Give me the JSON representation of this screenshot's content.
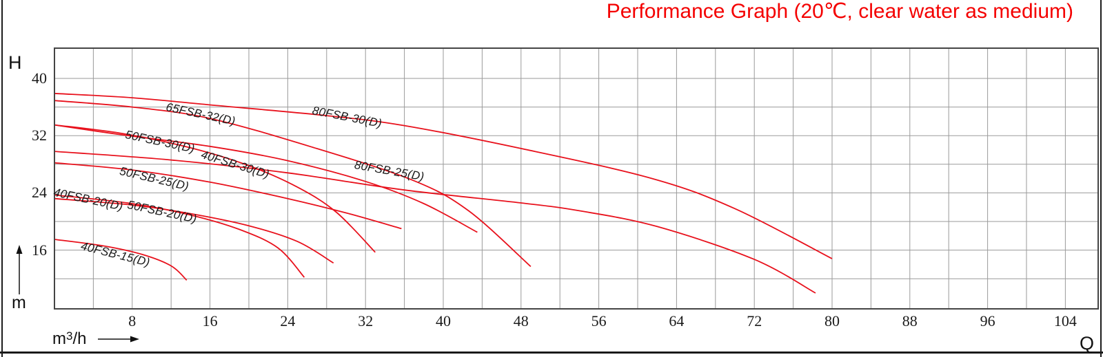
{
  "title": "Performance Graph (20℃, clear water as medium)",
  "colors": {
    "title": "#f40000",
    "curve": "#e8111c",
    "grid": "#9a9a9a",
    "plot_border": "#444444",
    "text": "#1a1a1a"
  },
  "axes": {
    "y_symbol": "H",
    "y_unit": "m",
    "x_unit_base": "m",
    "x_unit_sup": "3",
    "x_unit_rest": "/h",
    "x_symbol": "Q"
  },
  "chart_data": {
    "type": "line",
    "title": "Performance Graph (20℃, clear water as medium)",
    "xlabel": "Q (m³/h)",
    "ylabel": "H (m)",
    "xlim": [
      0,
      107
    ],
    "ylim": [
      8,
      44
    ],
    "grid": "gray lines every 4 units on both axes",
    "legend_position": "labels on curves",
    "x_ticks": [
      8,
      16,
      24,
      32,
      40,
      48,
      56,
      64,
      72,
      80,
      88,
      96,
      104
    ],
    "y_ticks": [
      40,
      32,
      24,
      16
    ],
    "series": [
      {
        "name": "65FSB-32(D)",
        "points": [
          [
            0,
            36.9
          ],
          [
            8,
            36.0
          ],
          [
            16,
            34.4
          ],
          [
            26.5,
            30.4
          ],
          [
            36.8,
            25.8
          ],
          [
            42.6,
            21.5
          ],
          [
            49,
            13.7
          ]
        ]
      },
      {
        "name": "80FSB-30(D)",
        "points": [
          [
            0,
            37.9
          ],
          [
            8,
            37.3
          ],
          [
            16,
            36.3
          ],
          [
            28,
            34.8
          ],
          [
            36,
            33.4
          ],
          [
            48,
            30.2
          ],
          [
            61.5,
            26.0
          ],
          [
            70,
            21.8
          ],
          [
            80,
            14.8
          ]
        ]
      },
      {
        "name": "50FSB-30(D)",
        "points": [
          [
            0,
            33.5
          ],
          [
            6.5,
            32.2
          ],
          [
            16,
            30.5
          ],
          [
            24,
            28.5
          ],
          [
            32,
            25.6
          ],
          [
            38,
            22.5
          ],
          [
            43.5,
            18.5
          ]
        ]
      },
      {
        "name": "40FSB-30(D)",
        "points": [
          [
            0,
            33.5
          ],
          [
            7,
            32.3
          ],
          [
            14,
            30.3
          ],
          [
            20,
            27.8
          ],
          [
            25,
            24.8
          ],
          [
            29,
            21.3
          ],
          [
            33,
            15.7
          ]
        ]
      },
      {
        "name": "80FSB-25(D)",
        "points": [
          [
            0,
            29.8
          ],
          [
            12,
            28.6
          ],
          [
            24,
            26.8
          ],
          [
            36,
            24.4
          ],
          [
            48,
            22.6
          ],
          [
            54,
            21.5
          ],
          [
            62,
            19.3
          ],
          [
            72,
            14.7
          ],
          [
            78.3,
            10.0
          ]
        ]
      },
      {
        "name": "50FSB-25(D)",
        "points": [
          [
            0,
            28.2
          ],
          [
            8,
            27.2
          ],
          [
            16,
            25.5
          ],
          [
            24,
            23.2
          ],
          [
            30,
            21.2
          ],
          [
            35.7,
            19.0
          ]
        ]
      },
      {
        "name": "40FSB-20(D)",
        "points": [
          [
            0,
            23.7
          ],
          [
            8,
            22.5
          ],
          [
            14,
            20.9
          ],
          [
            19,
            18.9
          ],
          [
            23,
            16.3
          ],
          [
            25.7,
            12.2
          ]
        ]
      },
      {
        "name": "50FSB-20(D)",
        "points": [
          [
            0,
            23.2
          ],
          [
            8,
            22.3
          ],
          [
            14,
            21.1
          ],
          [
            20,
            19.4
          ],
          [
            25,
            17.2
          ],
          [
            28.7,
            14.2
          ]
        ]
      },
      {
        "name": "40FSB-15(D)",
        "points": [
          [
            0,
            17.5
          ],
          [
            5,
            16.6
          ],
          [
            9,
            15.4
          ],
          [
            12,
            13.8
          ],
          [
            13.6,
            11.8
          ]
        ]
      }
    ]
  }
}
